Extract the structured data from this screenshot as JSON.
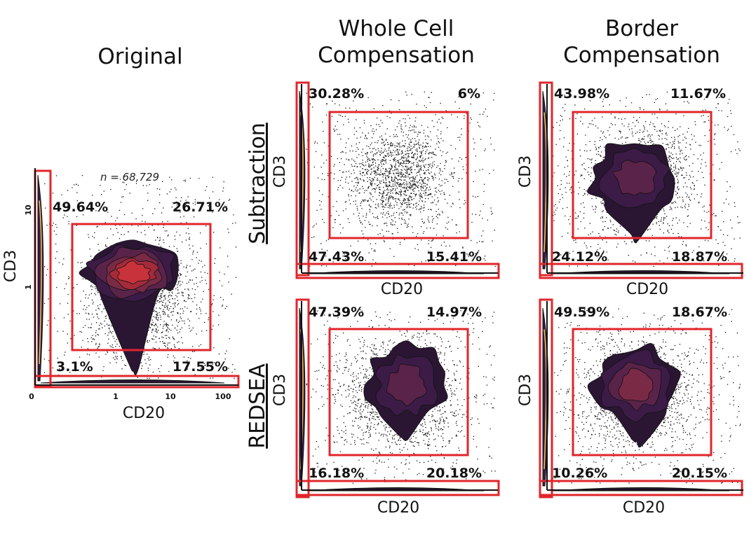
{
  "columns": {
    "original": "Original",
    "whole_cell_line1": "Whole Cell",
    "whole_cell_line2": "Compensation",
    "border_line1": "Border",
    "border_line2": "Compensation"
  },
  "rows": {
    "subtraction": "Subtraction",
    "redsea": "REDSEA"
  },
  "colors": {
    "gate": "#e0262b",
    "density": [
      "#2a1633",
      "#3c1b47",
      "#5a2349",
      "#7a2a45",
      "#a52b3a",
      "#c8323a",
      "#e86a2a",
      "#f3c64a"
    ],
    "dots": "#111111"
  },
  "chart_data": [
    {
      "id": "original",
      "type": "scatter",
      "title": "Original",
      "xlabel": "CD20",
      "ylabel": "CD3",
      "annotation": "n = 68,729",
      "x_ticks": [
        "0",
        "1",
        "10",
        "100"
      ],
      "y_ticks": [
        "1",
        "10"
      ],
      "quadrants": {
        "top_left": "49.64%",
        "top_right": "26.71%",
        "bottom_left": "3.1%",
        "bottom_right": "17.55%"
      },
      "gates": [
        "CD3+ strip",
        "CD20+ strip",
        "double-positive box"
      ]
    },
    {
      "id": "whole-subtraction",
      "type": "scatter",
      "title": "Whole Cell Compensation",
      "row": "Subtraction",
      "xlabel": "CD20",
      "ylabel": "CD3",
      "quadrants": {
        "top_left": "30.28%",
        "top_right": "6%",
        "bottom_left": "47.43%",
        "bottom_right": "15.41%"
      },
      "gates": [
        "CD3+ strip",
        "CD20+ strip",
        "double-positive box"
      ]
    },
    {
      "id": "border-subtraction",
      "type": "scatter",
      "title": "Border Compensation",
      "row": "Subtraction",
      "xlabel": "CD20",
      "ylabel": "CD3",
      "quadrants": {
        "top_left": "43.98%",
        "top_right": "11.67%",
        "bottom_left": "24.12%",
        "bottom_right": "18.87%"
      },
      "gates": [
        "CD3+ strip",
        "CD20+ strip",
        "double-positive box"
      ]
    },
    {
      "id": "whole-redsea",
      "type": "scatter",
      "title": "Whole Cell Compensation",
      "row": "REDSEA",
      "xlabel": "CD20",
      "ylabel": "CD3",
      "quadrants": {
        "top_left": "47.39%",
        "top_right": "14.97%",
        "bottom_left": "16.18%",
        "bottom_right": "20.18%"
      },
      "gates": [
        "CD3+ strip",
        "CD20+ strip",
        "double-positive box"
      ]
    },
    {
      "id": "border-redsea",
      "type": "scatter",
      "title": "Border Compensation",
      "row": "REDSEA",
      "xlabel": "CD20",
      "ylabel": "CD3",
      "quadrants": {
        "top_left": "49.59%",
        "top_right": "18.67%",
        "bottom_left": "10.26%",
        "bottom_right": "20.15%"
      },
      "gates": [
        "CD3+ strip",
        "CD20+ strip",
        "double-positive box"
      ]
    }
  ]
}
